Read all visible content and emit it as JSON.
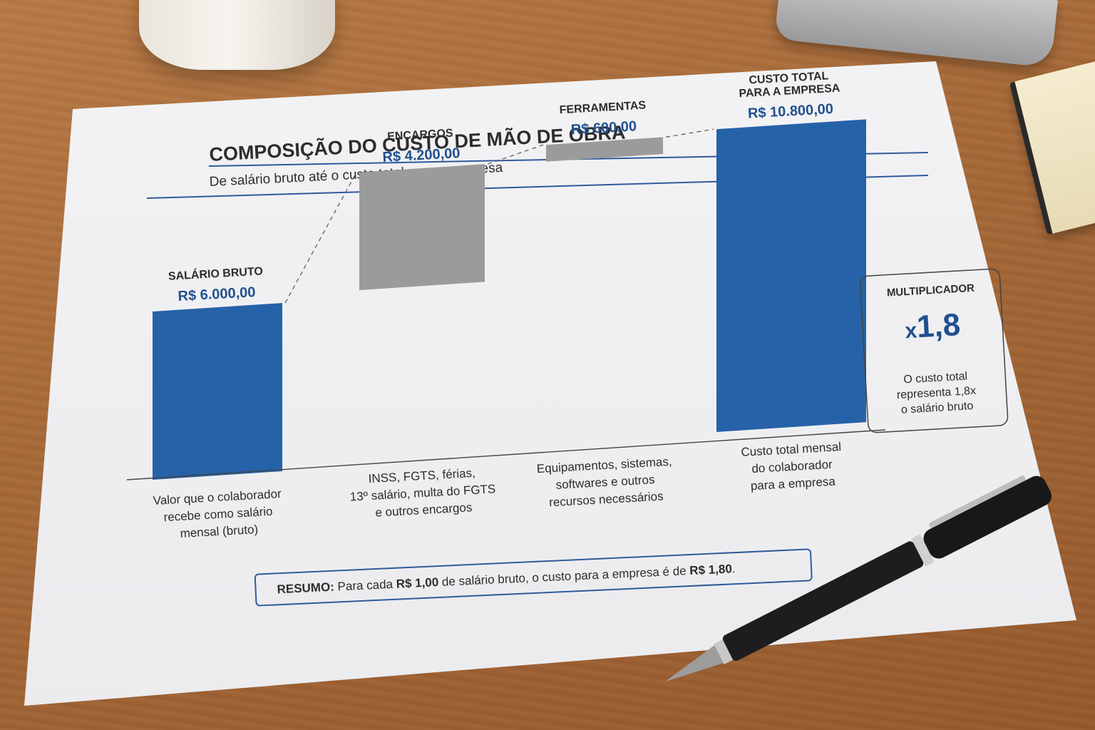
{
  "title": "COMPOSIÇÃO  DO CUSTO DE MÃO DE OBRA",
  "subtitle": "De salário bruto até o custo total para a empresa",
  "colors": {
    "blue": "#2662a8",
    "gray": "#9b9b9b",
    "value_text": "#22508f",
    "rule": "#2e5b9a"
  },
  "chart_data": {
    "type": "bar",
    "subtype": "waterfall",
    "categories": [
      "SALÁRIO BRUTO",
      "ENCARGOS",
      "FERRAMENTAS",
      "CUSTO TOTAL PARA A EMPRESA"
    ],
    "values": [
      6000,
      4200,
      600,
      10800
    ],
    "value_labels": [
      "R$ 6.000,00",
      "R$ 4.200,00",
      "R$ 600,00",
      "R$ 10.800,00"
    ],
    "measures": [
      "absolute",
      "relative",
      "relative",
      "total"
    ],
    "bar_colors": [
      "blue",
      "gray",
      "gray",
      "blue"
    ],
    "descriptions": [
      [
        "Valor que o colaborador",
        "recebe como salário",
        "mensal (bruto)"
      ],
      [
        "INSS, FGTS, férias,",
        "13º salário, multa do FGTS",
        "e outros encargos"
      ],
      [
        "Equipamentos, sistemas,",
        "softwares e outros",
        "recursos necessários"
      ],
      [
        "Custo total mensal",
        "do colaborador",
        "para a empresa"
      ]
    ],
    "ylim": [
      0,
      11000
    ],
    "connector_lines": "dashed",
    "grid": false
  },
  "multiplier": {
    "title": "MULTIPLICADOR",
    "prefix": "x",
    "value": "1,8",
    "lines": [
      "O custo total",
      "representa 1,8x",
      "o salário bruto"
    ]
  },
  "summary": {
    "label": "RESUMO:",
    "text_a": "Para cada ",
    "bold_a": "R$ 1,00",
    "text_b": " de salário bruto, o custo para a empresa é de ",
    "bold_b": "R$ 1,80",
    "text_c": "."
  }
}
